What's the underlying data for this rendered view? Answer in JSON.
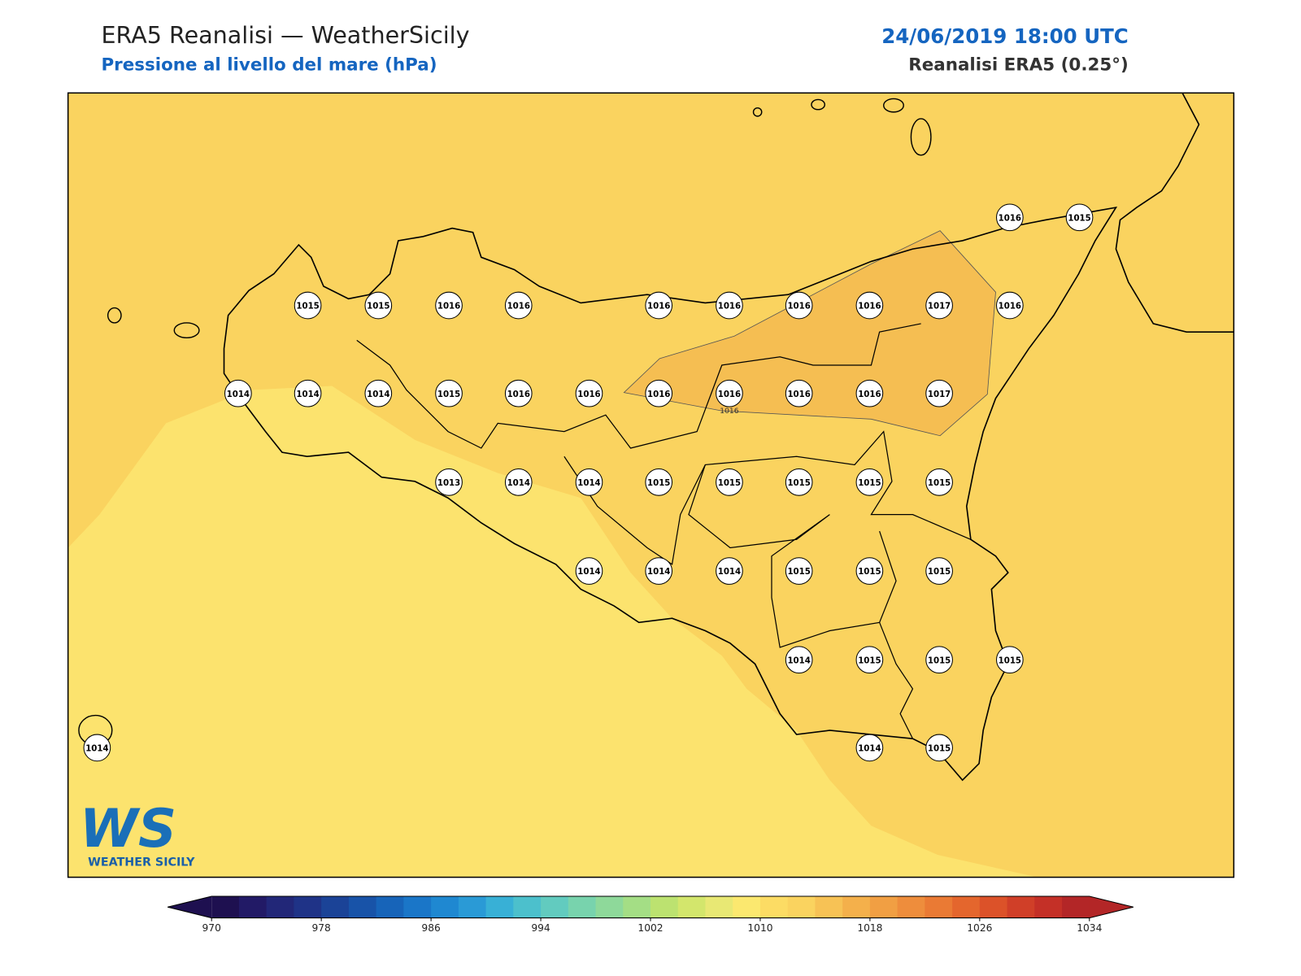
{
  "header": {
    "title": "ERA5 Reanalisi — WeatherSicily",
    "subtitle": "Pressione al livello del mare (hPa)",
    "date": "24/06/2019 18:00 UTC",
    "source": "Reanalisi ERA5 (0.25°)"
  },
  "map": {
    "contour_label": "1016",
    "stations": [
      1016,
      1015,
      1015,
      1015,
      1016,
      1016,
      1016,
      1016,
      1016,
      1016,
      1017,
      1016,
      1014,
      1014,
      1014,
      1015,
      1016,
      1016,
      1016,
      1016,
      1016,
      1016,
      1017,
      1013,
      1014,
      1014,
      1015,
      1015,
      1015,
      1015,
      1015,
      1014,
      1014,
      1014,
      1015,
      1015,
      1015,
      1014,
      1015,
      1015,
      1015,
      1014,
      1014,
      1015
    ]
  },
  "colorbar": {
    "ticks": [
      970,
      978,
      986,
      994,
      1002,
      1010,
      1018,
      1026,
      1034
    ],
    "colors": [
      "#1e1050",
      "#221a66",
      "#222778",
      "#1f3387",
      "#1b4397",
      "#1853a8",
      "#1764b9",
      "#1a76c8",
      "#1f88d1",
      "#2a9ad6",
      "#38b0d6",
      "#4cc0cc",
      "#62cbbf",
      "#78d3ad",
      "#8ed99a",
      "#a4de85",
      "#bce270",
      "#d3e66c",
      "#e8e874",
      "#fbe86f",
      "#fcdc64",
      "#fad35f",
      "#f7c255",
      "#f4b04b",
      "#f19f43",
      "#ee8d3c",
      "#ea7a34",
      "#e4662d",
      "#dc5229",
      "#d03f28",
      "#c43027",
      "#b32627"
    ]
  },
  "logo": {
    "mark": "WS",
    "name": "WEATHER SICILY"
  }
}
